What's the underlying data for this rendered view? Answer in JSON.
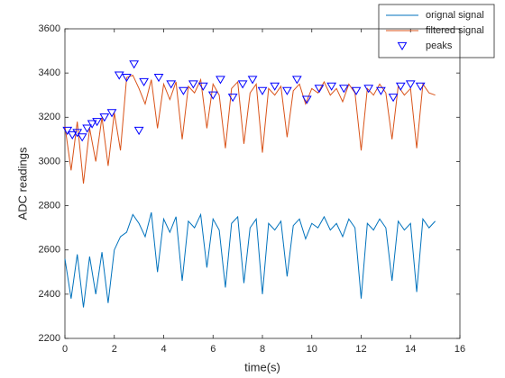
{
  "chart_data": {
    "type": "line",
    "xlabel": "time(s)",
    "ylabel": "ADC readings",
    "x": [
      0,
      0.25,
      0.5,
      0.75,
      1,
      1.25,
      1.5,
      1.75,
      2,
      2.25,
      2.5,
      2.75,
      3,
      3.25,
      3.5,
      3.75,
      4,
      4.25,
      4.5,
      4.75,
      5,
      5.25,
      5.5,
      5.75,
      6,
      6.25,
      6.5,
      6.75,
      7,
      7.25,
      7.5,
      7.75,
      8,
      8.25,
      8.5,
      8.75,
      9,
      9.25,
      9.5,
      9.75,
      10,
      10.25,
      10.5,
      10.75,
      11,
      11.25,
      11.5,
      11.75,
      12,
      12.25,
      12.5,
      12.75,
      13,
      13.25,
      13.5,
      13.75,
      14,
      14.25,
      14.5,
      14.75,
      15
    ],
    "series": [
      {
        "name": "orignal signal",
        "color": "#0072bd",
        "values": [
          2560,
          2380,
          2580,
          2340,
          2570,
          2400,
          2590,
          2360,
          2600,
          2660,
          2680,
          2760,
          2720,
          2660,
          2770,
          2500,
          2740,
          2680,
          2750,
          2460,
          2730,
          2700,
          2760,
          2520,
          2740,
          2690,
          2430,
          2720,
          2750,
          2450,
          2700,
          2740,
          2400,
          2720,
          2690,
          2730,
          2480,
          2710,
          2740,
          2650,
          2720,
          2700,
          2750,
          2690,
          2720,
          2660,
          2740,
          2700,
          2380,
          2720,
          2690,
          2740,
          2700,
          2460,
          2730,
          2690,
          2720,
          2410,
          2740,
          2700,
          2730
        ]
      },
      {
        "name": "filtered signal",
        "color": "#d95319",
        "values": [
          3160,
          2960,
          3180,
          2900,
          3150,
          3000,
          3200,
          2980,
          3220,
          3050,
          3380,
          3390,
          3330,
          3260,
          3370,
          3150,
          3350,
          3280,
          3360,
          3100,
          3340,
          3310,
          3370,
          3150,
          3350,
          3300,
          3060,
          3330,
          3360,
          3080,
          3310,
          3350,
          3040,
          3330,
          3300,
          3340,
          3110,
          3320,
          3350,
          3260,
          3330,
          3310,
          3360,
          3300,
          3330,
          3270,
          3350,
          3310,
          3050,
          3330,
          3300,
          3350,
          3310,
          3100,
          3340,
          3300,
          3330,
          3060,
          3350,
          3310,
          3300
        ]
      },
      {
        "name": "peaks",
        "color": "#0000ff",
        "marker": "triangle-down",
        "x": [
          0.1,
          0.3,
          0.5,
          0.7,
          0.9,
          1.1,
          1.3,
          1.6,
          1.9,
          2.2,
          2.5,
          2.8,
          3.0,
          3.2,
          3.8,
          4.3,
          4.8,
          5.2,
          5.6,
          6.0,
          6.3,
          6.8,
          7.2,
          7.6,
          8.0,
          8.5,
          9.0,
          9.4,
          9.8,
          10.3,
          10.8,
          11.3,
          11.8,
          12.3,
          12.8,
          13.3,
          13.6,
          14.0,
          14.4
        ],
        "values": [
          3140,
          3120,
          3130,
          3110,
          3150,
          3170,
          3180,
          3200,
          3220,
          3390,
          3380,
          3440,
          3140,
          3360,
          3380,
          3350,
          3320,
          3350,
          3340,
          3300,
          3370,
          3290,
          3350,
          3370,
          3320,
          3340,
          3320,
          3370,
          3280,
          3330,
          3340,
          3330,
          3320,
          3330,
          3320,
          3290,
          3340,
          3350,
          3340
        ]
      }
    ],
    "xlim": [
      0,
      16
    ],
    "xticks": [
      0,
      2,
      4,
      6,
      8,
      10,
      12,
      14,
      16
    ],
    "ylim": [
      2200,
      3600
    ],
    "yticks": [
      2200,
      2400,
      2600,
      2800,
      3000,
      3200,
      3400,
      3600
    ],
    "legend": "upper right"
  }
}
